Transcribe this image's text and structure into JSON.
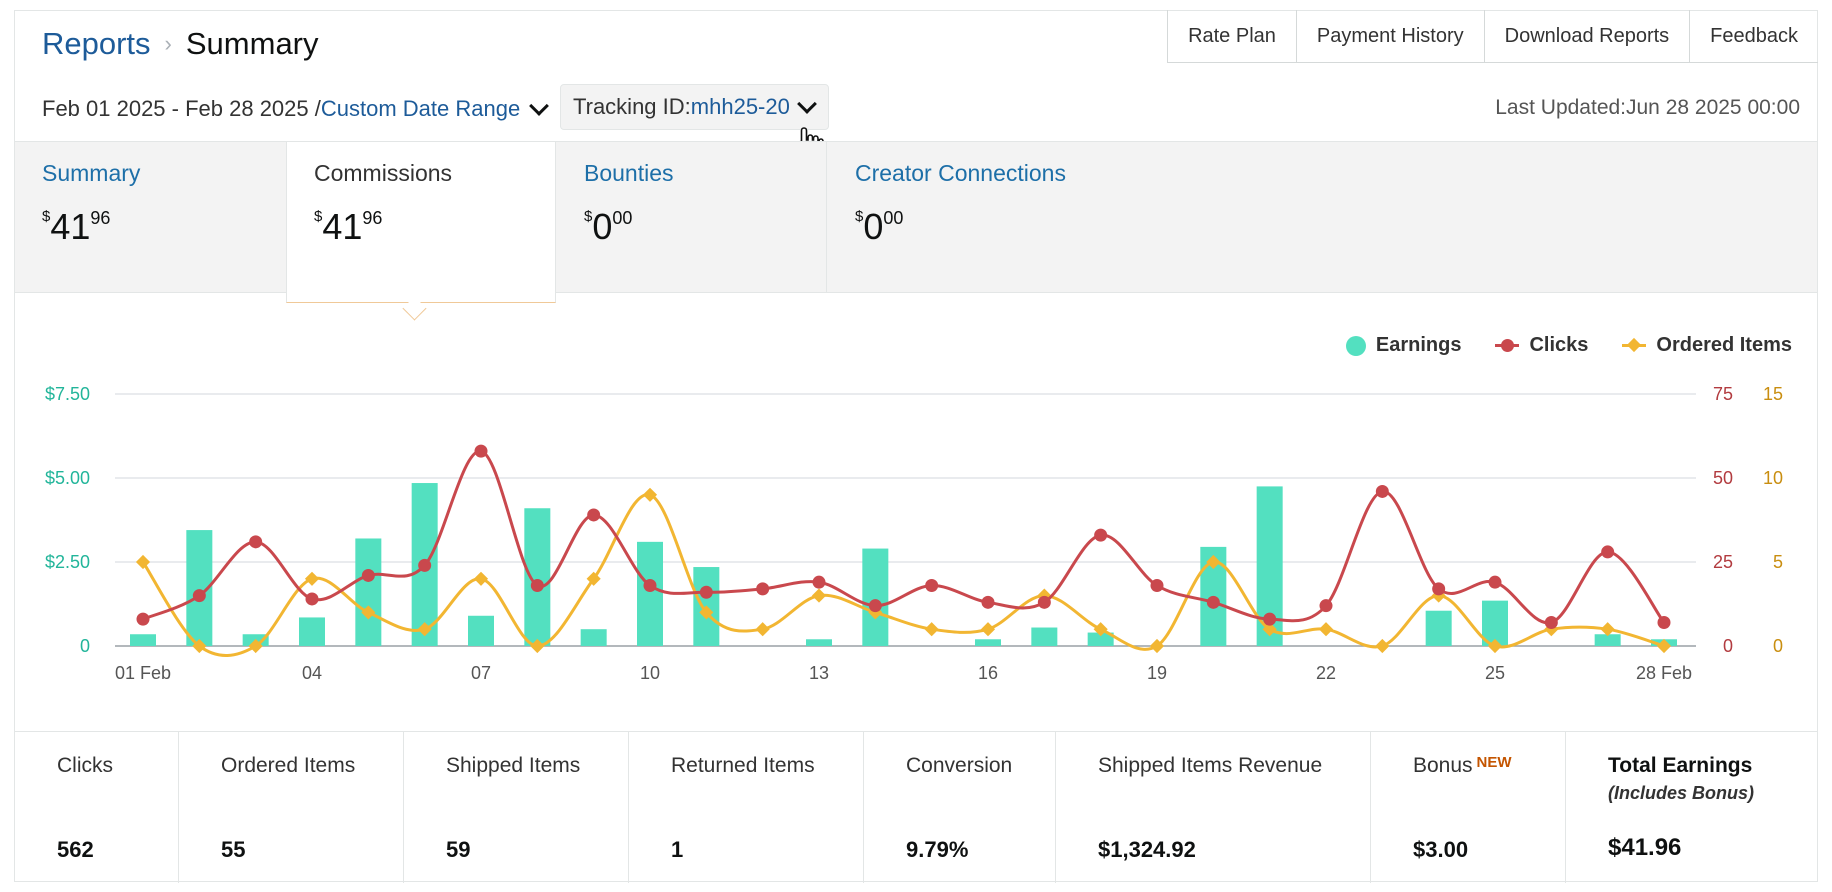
{
  "breadcrumb": {
    "parent": "Reports",
    "current": "Summary"
  },
  "top_nav": [
    "Rate Plan",
    "Payment History",
    "Download Reports",
    "Feedback"
  ],
  "date_range": {
    "text": "Feb 01 2025 - Feb 28 2025 /",
    "link": "Custom Date Range"
  },
  "tracking": {
    "label": "Tracking ID:",
    "value": "mhh25-20"
  },
  "last_updated": "Last Updated:Jun 28 2025 00:00",
  "tabs": [
    {
      "label": "Summary",
      "currency": "$",
      "whole": "41",
      "cents": "96",
      "active": false
    },
    {
      "label": "Commissions",
      "currency": "$",
      "whole": "41",
      "cents": "96",
      "active": true
    },
    {
      "label": "Bounties",
      "currency": "$",
      "whole": "0",
      "cents": "00",
      "active": false
    },
    {
      "label": "Creator Connections",
      "currency": "$",
      "whole": "0",
      "cents": "00",
      "active": false
    }
  ],
  "legend": {
    "earnings": "Earnings",
    "clicks": "Clicks",
    "ordered": "Ordered Items"
  },
  "colors": {
    "earnings": "#53e0c0",
    "clicks": "#c9484d",
    "ordered": "#f2b632",
    "link": "#1d6fa8",
    "left_axis": "#22b59a",
    "mid_axis": "#b23b3f",
    "right_axis": "#c98e10"
  },
  "chart_data": {
    "type": "bar+line",
    "x": [
      1,
      2,
      3,
      4,
      5,
      6,
      7,
      8,
      9,
      10,
      11,
      12,
      13,
      14,
      15,
      16,
      17,
      18,
      19,
      20,
      21,
      22,
      23,
      24,
      25,
      26,
      27,
      28
    ],
    "x_tick_labels": {
      "1": "01 Feb",
      "4": "04",
      "7": "07",
      "10": "10",
      "13": "13",
      "16": "16",
      "19": "19",
      "22": "22",
      "25": "25",
      "28": "28 Feb"
    },
    "left_axis": {
      "ticks": [
        "0",
        "$2.50",
        "$5.00",
        "$7.50"
      ],
      "values": [
        0,
        2.5,
        5,
        7.5
      ],
      "max": 7.5
    },
    "mid_axis": {
      "ticks": [
        "0",
        "25",
        "50",
        "75"
      ],
      "values": [
        0,
        25,
        50,
        75
      ],
      "max": 75
    },
    "right_axis": {
      "ticks": [
        "0",
        "5",
        "10",
        "15"
      ],
      "values": [
        0,
        5,
        10,
        15
      ],
      "max": 15
    },
    "series": [
      {
        "name": "Earnings",
        "kind": "bar",
        "axis": "left",
        "values": [
          0.35,
          3.45,
          0.35,
          0.85,
          3.2,
          4.85,
          0.9,
          4.1,
          0.5,
          3.1,
          2.35,
          0,
          0.2,
          2.9,
          0,
          0.2,
          0.55,
          0.4,
          0,
          2.95,
          4.75,
          0,
          0,
          1.05,
          1.35,
          0,
          0.35,
          0.2
        ]
      },
      {
        "name": "Clicks",
        "kind": "line",
        "axis": "mid",
        "values": [
          8,
          15,
          31,
          14,
          21,
          24,
          58,
          18,
          39,
          18,
          16,
          17,
          19,
          12,
          18,
          13,
          13,
          33,
          18,
          13,
          8,
          12,
          46,
          17,
          19,
          7,
          28,
          7
        ]
      },
      {
        "name": "Ordered Items",
        "kind": "line",
        "axis": "right",
        "values": [
          5,
          0,
          0,
          4,
          2,
          1,
          4,
          0,
          4,
          9,
          2,
          1,
          3,
          2,
          1,
          1,
          3,
          1,
          0,
          5,
          1,
          1,
          0,
          3,
          0,
          1,
          1,
          0
        ]
      }
    ]
  },
  "stats": [
    {
      "label": "Clicks",
      "value": "562"
    },
    {
      "label": "Ordered Items",
      "value": "55"
    },
    {
      "label": "Shipped Items",
      "value": "59"
    },
    {
      "label": "Returned Items",
      "value": "1"
    },
    {
      "label": "Conversion",
      "value": "9.79%"
    },
    {
      "label": "Shipped Items Revenue",
      "value": "$1,324.92"
    },
    {
      "label": "Bonus",
      "badge": "NEW",
      "value": "$3.00"
    },
    {
      "label": "Total Earnings",
      "sublabel": "(Includes Bonus)",
      "value": "$41.96"
    }
  ]
}
